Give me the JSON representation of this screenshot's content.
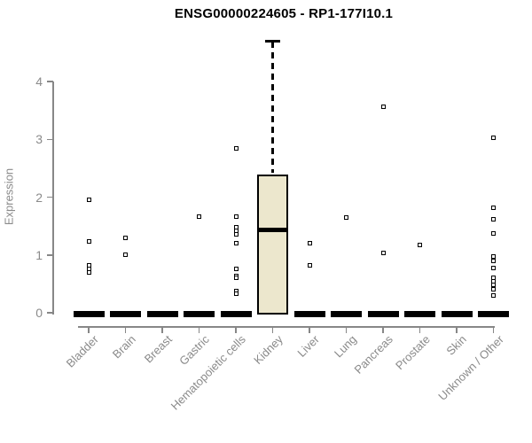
{
  "chart_data": {
    "type": "boxplot",
    "title": "ENSG00000224605 - RP1-177I10.1",
    "ylabel": "Expression",
    "xlabel": "",
    "ylim": [
      0,
      4.8
    ],
    "yticks": [
      0,
      1,
      2,
      3,
      4
    ],
    "grid": "off",
    "legend": "none",
    "categories": [
      "Bladder",
      "Brain",
      "Breast",
      "Gastric",
      "Hematopoietic cells",
      "Kidney",
      "Liver",
      "Lung",
      "Pancreas",
      "Prostate",
      "Skin",
      "Unknown / Other"
    ],
    "boxes": [
      {
        "category": "Bladder",
        "q1": 0,
        "median": 0,
        "q3": 0,
        "whisker_low": 0,
        "whisker_high": 0,
        "outliers": [
          1.95,
          1.23,
          0.82,
          0.76,
          0.7
        ]
      },
      {
        "category": "Brain",
        "q1": 0,
        "median": 0,
        "q3": 0,
        "whisker_low": 0,
        "whisker_high": 0,
        "outliers": [
          1.3,
          1.01
        ]
      },
      {
        "category": "Breast",
        "q1": 0,
        "median": 0,
        "q3": 0,
        "whisker_low": 0,
        "whisker_high": 0,
        "outliers": []
      },
      {
        "category": "Gastric",
        "q1": 0,
        "median": 0,
        "q3": 0,
        "whisker_low": 0,
        "whisker_high": 0,
        "outliers": [
          1.67
        ]
      },
      {
        "category": "Hematopoietic cells",
        "q1": 0,
        "median": 0,
        "q3": 0,
        "whisker_low": 0,
        "whisker_high": 0,
        "outliers": [
          2.84,
          1.66,
          1.48,
          1.41,
          1.35,
          1.2,
          0.76,
          0.64,
          0.6,
          0.38,
          0.33
        ]
      },
      {
        "category": "Kidney",
        "q1": 0.0,
        "median": 1.43,
        "q3": 2.39,
        "whisker_low": 0.0,
        "whisker_high": 4.72,
        "outliers": []
      },
      {
        "category": "Liver",
        "q1": 0,
        "median": 0,
        "q3": 0,
        "whisker_low": 0,
        "whisker_high": 0,
        "outliers": [
          1.2,
          0.82
        ]
      },
      {
        "category": "Lung",
        "q1": 0,
        "median": 0,
        "q3": 0,
        "whisker_low": 0,
        "whisker_high": 0,
        "outliers": [
          1.64
        ]
      },
      {
        "category": "Pancreas",
        "q1": 0,
        "median": 0,
        "q3": 0,
        "whisker_low": 0,
        "whisker_high": 0,
        "outliers": [
          3.56,
          1.03
        ]
      },
      {
        "category": "Prostate",
        "q1": 0,
        "median": 0,
        "q3": 0,
        "whisker_low": 0,
        "whisker_high": 0,
        "outliers": [
          1.17
        ]
      },
      {
        "category": "Skin",
        "q1": 0,
        "median": 0,
        "q3": 0,
        "whisker_low": 0,
        "whisker_high": 0,
        "outliers": []
      },
      {
        "category": "Unknown / Other",
        "q1": 0,
        "median": 0,
        "q3": 0,
        "whisker_low": 0,
        "whisker_high": 0,
        "outliers": [
          3.03,
          1.82,
          1.61,
          1.37,
          0.98,
          0.9,
          0.77,
          0.61,
          0.55,
          0.48,
          0.41,
          0.3
        ]
      }
    ],
    "colors": {
      "box_fill": "#ece7cd",
      "box_border": "#000000",
      "median": "#000000",
      "axis": "#878787",
      "tick_label": "#8a8a8a",
      "title": "#000000",
      "background": "#ffffff"
    }
  }
}
